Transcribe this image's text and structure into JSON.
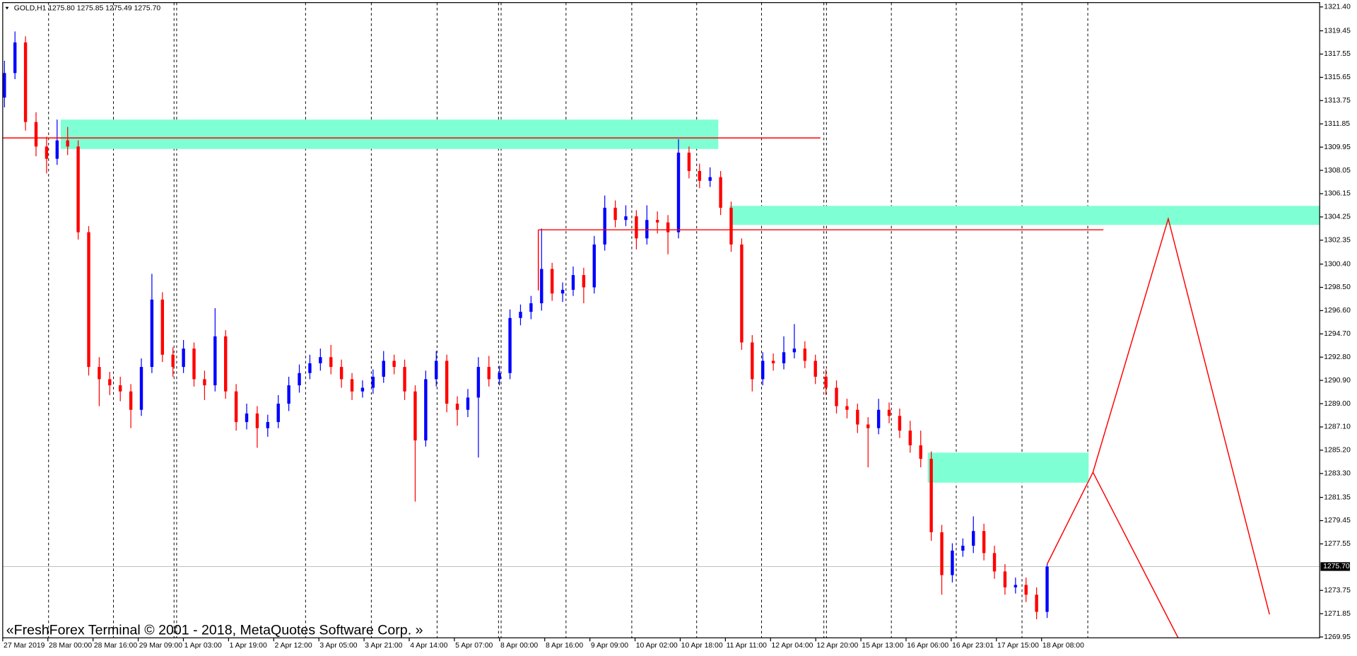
{
  "chart_data": {
    "type": "candlestick",
    "symbol_info": "GOLD,H1  1275.80 1275.85 1275.49 1275.70",
    "watermark": "«FreshForex Terminal © 2001 - 2018, MetaQuotes Software Corp. »",
    "up_color": "#0000ff",
    "down_color": "#ff0000",
    "ylim": [
      1269.95,
      1321.4
    ],
    "yticks": [
      {
        "value": 1321.4,
        "label": "1321.40"
      },
      {
        "value": 1319.45,
        "label": "1319.45"
      },
      {
        "value": 1317.55,
        "label": "1317.55"
      },
      {
        "value": 1315.65,
        "label": "1315.65"
      },
      {
        "value": 1313.75,
        "label": "1313.75"
      },
      {
        "value": 1311.85,
        "label": "1311.85"
      },
      {
        "value": 1309.95,
        "label": "1309.95"
      },
      {
        "value": 1308.05,
        "label": "1308.05"
      },
      {
        "value": 1306.15,
        "label": "1306.15"
      },
      {
        "value": 1304.25,
        "label": "1304.25"
      },
      {
        "value": 1302.35,
        "label": "1302.35"
      },
      {
        "value": 1300.4,
        "label": "1300.40"
      },
      {
        "value": 1298.5,
        "label": "1298.50"
      },
      {
        "value": 1296.6,
        "label": "1296.60"
      },
      {
        "value": 1294.7,
        "label": "1294.70"
      },
      {
        "value": 1292.8,
        "label": "1292.80"
      },
      {
        "value": 1290.9,
        "label": "1290.90"
      },
      {
        "value": 1289,
        "label": "1289.00"
      },
      {
        "value": 1287.1,
        "label": "1287.10"
      },
      {
        "value": 1285.2,
        "label": "1285.20"
      },
      {
        "value": 1283.3,
        "label": "1283.30"
      },
      {
        "value": 1281.35,
        "label": "1281.35"
      },
      {
        "value": 1279.45,
        "label": "1279.45"
      },
      {
        "value": 1277.55,
        "label": "1277.55"
      },
      {
        "value": 1273.75,
        "label": "1273.75"
      },
      {
        "value": 1271.85,
        "label": "1271.85"
      },
      {
        "value": 1269.95,
        "label": "1269.95"
      }
    ],
    "last_price": {
      "value": 1275.7,
      "label": "1275.70"
    },
    "xticks": [
      "27 Mar 2019",
      "28 Mar 00:00",
      "28 Mar 16:00",
      "29 Mar 09:00",
      "1 Apr 03:00",
      "1 Apr 19:00",
      "2 Apr 12:00",
      "3 Apr 05:00",
      "3 Apr 21:00",
      "4 Apr 14:00",
      "5 Apr 07:00",
      "8 Apr 00:00",
      "8 Apr 16:00",
      "9 Apr 09:00",
      "10 Apr 02:00",
      "10 Apr 18:00",
      "11 Apr 11:00",
      "12 Apr 04:00",
      "12 Apr 20:00",
      "15 Apr 13:00",
      "16 Apr 06:00",
      "16 Apr 23:01",
      "17 Apr 15:00",
      "18 Apr 08:00"
    ],
    "zone_color": "#7fffd4",
    "zones": [
      {
        "top": 1312.2,
        "bottom": 1309.8
      },
      {
        "top": 1305.15,
        "bottom": 1303.6
      },
      {
        "top": 1285.0,
        "bottom": 1282.55
      }
    ],
    "line_color": "#ff0000",
    "levels": [
      1310.7,
      1303.2
    ],
    "projection": [
      1275.9,
      1283.4,
      1304.1,
      1271.8
    ],
    "projection_branch": [
      1283.4,
      1269.8
    ],
    "ohlc": [
      [
        1314,
        1317,
        1313.2,
        1316
      ],
      [
        1316,
        1319.4,
        1315.5,
        1318.5
      ],
      [
        1318.5,
        1319,
        1311.3,
        1312
      ],
      [
        1312,
        1312.8,
        1309.2,
        1310
      ],
      [
        1310,
        1310.8,
        1307.8,
        1309
      ],
      [
        1309,
        1312.2,
        1308.5,
        1310.5
      ],
      [
        1310.5,
        1311.6,
        1309.3,
        1310
      ],
      [
        1310,
        1310.5,
        1302.4,
        1303
      ],
      [
        1303,
        1303.5,
        1291.3,
        1292
      ],
      [
        1292,
        1292.8,
        1288.8,
        1291
      ],
      [
        1291,
        1291.6,
        1289.7,
        1290.5
      ],
      [
        1290.5,
        1291.2,
        1289.2,
        1290
      ],
      [
        1290,
        1290.6,
        1287,
        1288.5
      ],
      [
        1288.5,
        1292.7,
        1288,
        1292
      ],
      [
        1292,
        1299.6,
        1291.5,
        1297.5
      ],
      [
        1297.5,
        1298.1,
        1292.4,
        1293
      ],
      [
        1293,
        1293.6,
        1291.2,
        1292
      ],
      [
        1292,
        1294.2,
        1291.5,
        1293.5
      ],
      [
        1293.5,
        1294,
        1290.4,
        1291
      ],
      [
        1291,
        1291.7,
        1289.3,
        1290.5
      ],
      [
        1290.5,
        1296.8,
        1290,
        1294.5
      ],
      [
        1294.5,
        1295,
        1289.4,
        1290
      ],
      [
        1290,
        1290.6,
        1286.8,
        1287.5
      ],
      [
        1287.5,
        1289,
        1286.9,
        1288.2
      ],
      [
        1288.2,
        1288.8,
        1285.4,
        1287
      ],
      [
        1287,
        1288.1,
        1286.3,
        1287.5
      ],
      [
        1287.5,
        1289.7,
        1287,
        1289
      ],
      [
        1289,
        1291.2,
        1288.4,
        1290.5
      ],
      [
        1290.5,
        1292.2,
        1289.9,
        1291.5
      ],
      [
        1291.5,
        1293,
        1291,
        1292.3
      ],
      [
        1292.3,
        1293.5,
        1291.7,
        1292.8
      ],
      [
        1292.8,
        1293.8,
        1291.4,
        1292
      ],
      [
        1292,
        1292.6,
        1290.3,
        1291
      ],
      [
        1291,
        1291.5,
        1289.3,
        1290
      ],
      [
        1290,
        1290.9,
        1289.5,
        1290.3
      ],
      [
        1290.3,
        1291.8,
        1289.8,
        1291.2
      ],
      [
        1291.2,
        1293.3,
        1290.7,
        1292.5
      ],
      [
        1292.5,
        1293,
        1291.4,
        1292
      ],
      [
        1292,
        1292.6,
        1289.3,
        1290
      ],
      [
        1290,
        1290.5,
        1281,
        1286
      ],
      [
        1286,
        1291.7,
        1285.5,
        1291
      ],
      [
        1291,
        1293.3,
        1290.4,
        1292.5
      ],
      [
        1292.5,
        1293,
        1288.3,
        1289
      ],
      [
        1289,
        1289.6,
        1287.2,
        1288.5
      ],
      [
        1288.5,
        1290.2,
        1287.9,
        1289.5
      ],
      [
        1289.5,
        1292.8,
        1284.6,
        1292
      ],
      [
        1292,
        1292.9,
        1290.4,
        1291
      ],
      [
        1291,
        1292.1,
        1290.5,
        1291.5
      ],
      [
        1291.5,
        1296.7,
        1291,
        1296
      ],
      [
        1296,
        1297.1,
        1295.4,
        1296.5
      ],
      [
        1296.5,
        1297.8,
        1295.9,
        1297.2
      ],
      [
        1297.2,
        1303.3,
        1296.6,
        1300
      ],
      [
        1300,
        1300.5,
        1297.4,
        1298
      ],
      [
        1298,
        1298.9,
        1297.3,
        1298.3
      ],
      [
        1298.3,
        1300.2,
        1297.8,
        1299.5
      ],
      [
        1299.5,
        1300.1,
        1297.2,
        1298.5
      ],
      [
        1298.5,
        1302.7,
        1298,
        1302
      ],
      [
        1302,
        1306,
        1301.5,
        1305
      ],
      [
        1305,
        1305.6,
        1303.4,
        1304
      ],
      [
        1304,
        1305.2,
        1303.5,
        1304.3
      ],
      [
        1304.3,
        1304.8,
        1301.6,
        1302.5
      ],
      [
        1302.5,
        1305.2,
        1302,
        1304
      ],
      [
        1304,
        1304.7,
        1302.9,
        1303.8
      ],
      [
        1303.8,
        1304.4,
        1301.2,
        1303
      ],
      [
        1303,
        1310.6,
        1302.5,
        1309.5
      ],
      [
        1309.5,
        1310,
        1307.4,
        1308
      ],
      [
        1308,
        1308.6,
        1306.6,
        1307.2
      ],
      [
        1307.2,
        1308.3,
        1306.7,
        1307.5
      ],
      [
        1307.5,
        1308,
        1304.4,
        1305
      ],
      [
        1305,
        1305.5,
        1301.4,
        1302
      ],
      [
        1302,
        1302.5,
        1293.4,
        1294
      ],
      [
        1294,
        1294.6,
        1290,
        1291
      ],
      [
        1291,
        1293.2,
        1290.5,
        1292.5
      ],
      [
        1292.5,
        1293.1,
        1291.7,
        1292.3
      ],
      [
        1292.3,
        1294.5,
        1291.8,
        1293.2
      ],
      [
        1293.2,
        1295.5,
        1292.7,
        1293.5
      ],
      [
        1293.5,
        1294.1,
        1291.9,
        1292.5
      ],
      [
        1292.5,
        1293,
        1290.6,
        1291.2
      ],
      [
        1291.2,
        1291.8,
        1289.7,
        1290.3
      ],
      [
        1290.3,
        1290.9,
        1288.2,
        1288.8
      ],
      [
        1288.8,
        1289.4,
        1287.8,
        1288.5
      ],
      [
        1288.5,
        1289,
        1286.6,
        1287.3
      ],
      [
        1287.3,
        1287.9,
        1283.8,
        1287
      ],
      [
        1287,
        1289.4,
        1286.5,
        1288.5
      ],
      [
        1288.5,
        1289.1,
        1287.4,
        1288
      ],
      [
        1288,
        1288.6,
        1286.2,
        1286.8
      ],
      [
        1286.8,
        1287.6,
        1285,
        1285.6
      ],
      [
        1285.6,
        1286.8,
        1283.8,
        1284.5
      ],
      [
        1284.5,
        1285.1,
        1277.8,
        1278.5
      ],
      [
        1278.5,
        1279.1,
        1273.4,
        1275
      ],
      [
        1275,
        1277.6,
        1274.4,
        1277
      ],
      [
        1277,
        1278,
        1276.5,
        1277.4
      ],
      [
        1277.4,
        1279.8,
        1276.8,
        1278.6
      ],
      [
        1278.6,
        1279.2,
        1276.2,
        1276.8
      ],
      [
        1276.8,
        1277.4,
        1274.7,
        1275.3
      ],
      [
        1275.3,
        1275.9,
        1273.4,
        1274
      ],
      [
        1274,
        1274.8,
        1273.5,
        1274.2
      ],
      [
        1274.2,
        1274.8,
        1272.8,
        1273.4
      ],
      [
        1273.4,
        1274,
        1271.4,
        1272
      ],
      [
        1272,
        1275.9,
        1271.5,
        1275.7
      ]
    ]
  }
}
